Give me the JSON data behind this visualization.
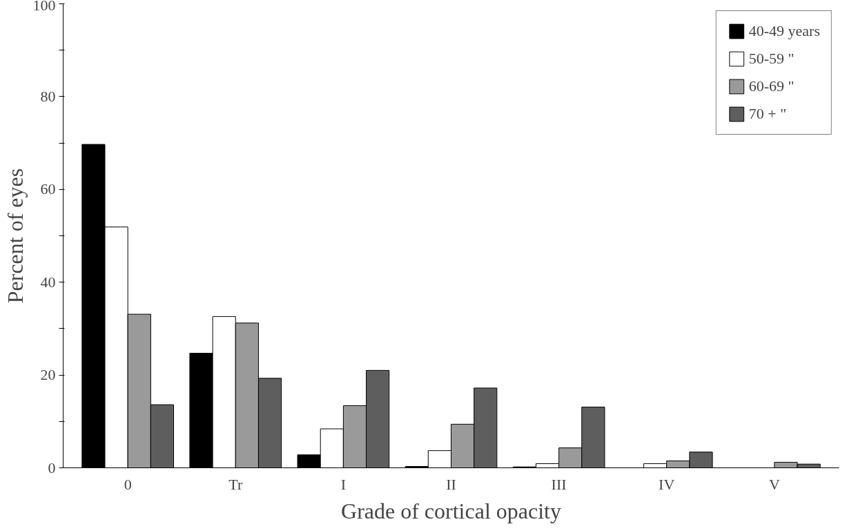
{
  "chart_data": {
    "type": "bar",
    "xlabel": "Grade of cortical opacity",
    "ylabel": "Percent of eyes",
    "categories": [
      "0",
      "Tr",
      "I",
      "II",
      "III",
      "IV",
      "V"
    ],
    "series": [
      {
        "name": "40-49 years",
        "color": "#000000",
        "values": [
          69.7,
          24.7,
          2.8,
          0.3,
          0.2,
          0,
          0
        ]
      },
      {
        "name": "50-59 \"",
        "color": "#ffffff",
        "values": [
          51.9,
          32.6,
          8.4,
          3.7,
          0.9,
          0.9,
          0
        ]
      },
      {
        "name": "60-69 \"",
        "color": "#9a9a9a",
        "values": [
          33.1,
          31.2,
          13.4,
          9.4,
          4.3,
          1.5,
          1.2
        ]
      },
      {
        "name": "70 + \"",
        "color": "#5e5e5e",
        "values": [
          13.6,
          19.3,
          21.0,
          17.2,
          13.1,
          3.4,
          0.8
        ]
      }
    ],
    "ylim": [
      0,
      100
    ],
    "yticks": [
      0,
      {
        "value": 10,
        "label": null
      },
      20,
      {
        "value": 30,
        "label": null
      },
      40,
      {
        "value": 50,
        "label": null
      },
      60,
      {
        "value": 70,
        "label": null
      },
      80,
      {
        "value": 90,
        "label": null
      },
      100
    ],
    "legend": "top right",
    "grid": false
  }
}
